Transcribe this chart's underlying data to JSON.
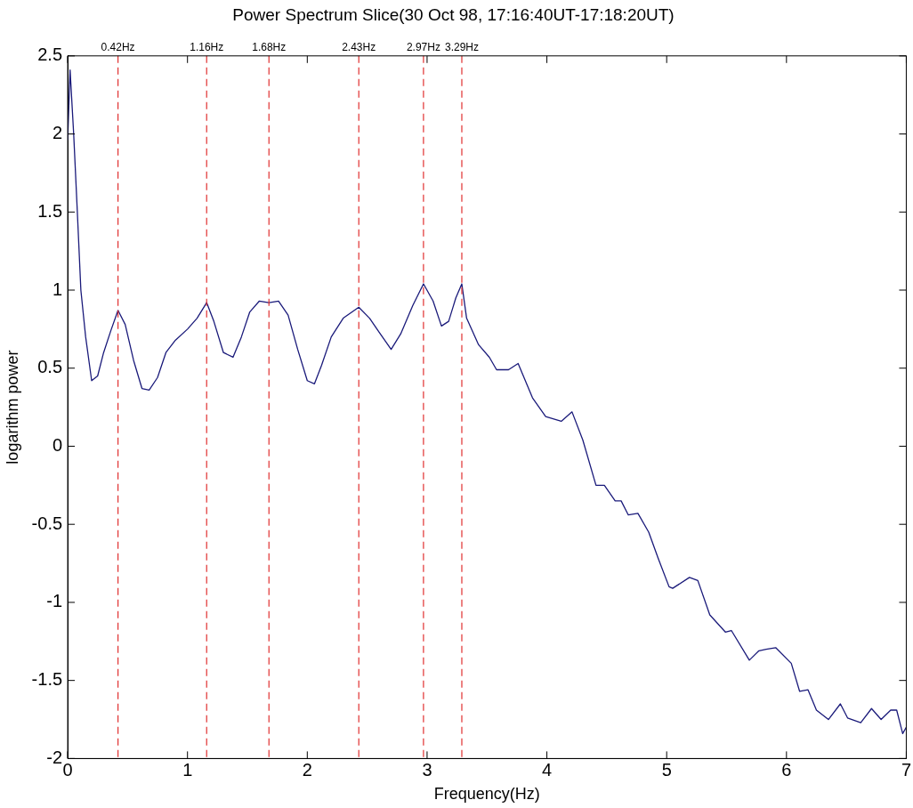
{
  "chart_data": {
    "type": "line",
    "title": "Power Spectrum Slice(30 Oct 98, 17:16:40UT-17:18:20UT)",
    "xlabel": "Frequency(Hz)",
    "ylabel": "logarithm power",
    "xlim": [
      0,
      7
    ],
    "xticks": [
      0,
      1,
      2,
      3,
      4,
      5,
      6,
      7
    ],
    "ylim": [
      -2,
      2.5
    ],
    "yticks": [
      -2,
      -1.5,
      -1,
      -0.5,
      0,
      0.5,
      1,
      1.5,
      2,
      2.5
    ],
    "grid": false,
    "legend": false,
    "marker": "none",
    "line_style": "solid",
    "series": [
      {
        "color": "#1a1a7a",
        "x": [
          0,
          0.02,
          0.05,
          0.08,
          0.11,
          0.15,
          0.2,
          0.25,
          0.3,
          0.36,
          0.42,
          0.48,
          0.55,
          0.62,
          0.68,
          0.75,
          0.82,
          0.9,
          1.0,
          1.08,
          1.16,
          1.22,
          1.3,
          1.38,
          1.45,
          1.52,
          1.6,
          1.68,
          1.76,
          1.84,
          1.92,
          2.0,
          2.06,
          2.12,
          2.2,
          2.3,
          2.43,
          2.52,
          2.6,
          2.7,
          2.78,
          2.88,
          2.97,
          3.05,
          3.12,
          3.18,
          3.24,
          3.29,
          3.33,
          3.43,
          3.52,
          3.58,
          3.68,
          3.76,
          3.88,
          3.99,
          4.12,
          4.21,
          4.3,
          4.41,
          4.48,
          4.57,
          4.62,
          4.68,
          4.76,
          4.85,
          4.93,
          5.02,
          5.05,
          5.19,
          5.26,
          5.36,
          5.49,
          5.54,
          5.69,
          5.77,
          5.83,
          5.91,
          6.04,
          6.11,
          6.18,
          6.25,
          6.35,
          6.45,
          6.51,
          6.62,
          6.71,
          6.79,
          6.87,
          6.92,
          6.97,
          7.0
        ],
        "values": [
          1.96,
          2.41,
          2.0,
          1.51,
          1.0,
          0.7,
          0.42,
          0.45,
          0.6,
          0.74,
          0.87,
          0.78,
          0.55,
          0.37,
          0.36,
          0.44,
          0.6,
          0.68,
          0.75,
          0.82,
          0.92,
          0.8,
          0.6,
          0.57,
          0.7,
          0.86,
          0.93,
          0.92,
          0.93,
          0.84,
          0.62,
          0.42,
          0.4,
          0.52,
          0.7,
          0.82,
          0.89,
          0.82,
          0.73,
          0.62,
          0.72,
          0.9,
          1.04,
          0.93,
          0.77,
          0.8,
          0.95,
          1.04,
          0.82,
          0.65,
          0.57,
          0.49,
          0.49,
          0.53,
          0.31,
          0.19,
          0.16,
          0.22,
          0.04,
          -0.25,
          -0.25,
          -0.35,
          -0.35,
          -0.44,
          -0.43,
          -0.55,
          -0.72,
          -0.9,
          -0.91,
          -0.84,
          -0.86,
          -1.08,
          -1.19,
          -1.18,
          -1.37,
          -1.31,
          -1.3,
          -1.29,
          -1.39,
          -1.57,
          -1.56,
          -1.69,
          -1.75,
          -1.65,
          -1.74,
          -1.77,
          -1.68,
          -1.75,
          -1.69,
          -1.69,
          -1.84,
          -1.8
        ]
      }
    ],
    "ref_lines": [
      {
        "axis": "x",
        "value": 0.42,
        "label": "0.42Hz",
        "color": "#e03030",
        "line_style": "dashed"
      },
      {
        "axis": "x",
        "value": 1.16,
        "label": "1.16Hz",
        "color": "#e03030",
        "line_style": "dashed"
      },
      {
        "axis": "x",
        "value": 1.68,
        "label": "1.68Hz",
        "color": "#e03030",
        "line_style": "dashed"
      },
      {
        "axis": "x",
        "value": 2.43,
        "label": "2.43Hz",
        "color": "#e03030",
        "line_style": "dashed"
      },
      {
        "axis": "x",
        "value": 2.97,
        "label": "2.97Hz",
        "color": "#e03030",
        "line_style": "dashed"
      },
      {
        "axis": "x",
        "value": 3.29,
        "label": "3.29Hz",
        "color": "#e03030",
        "line_style": "dashed"
      }
    ]
  }
}
